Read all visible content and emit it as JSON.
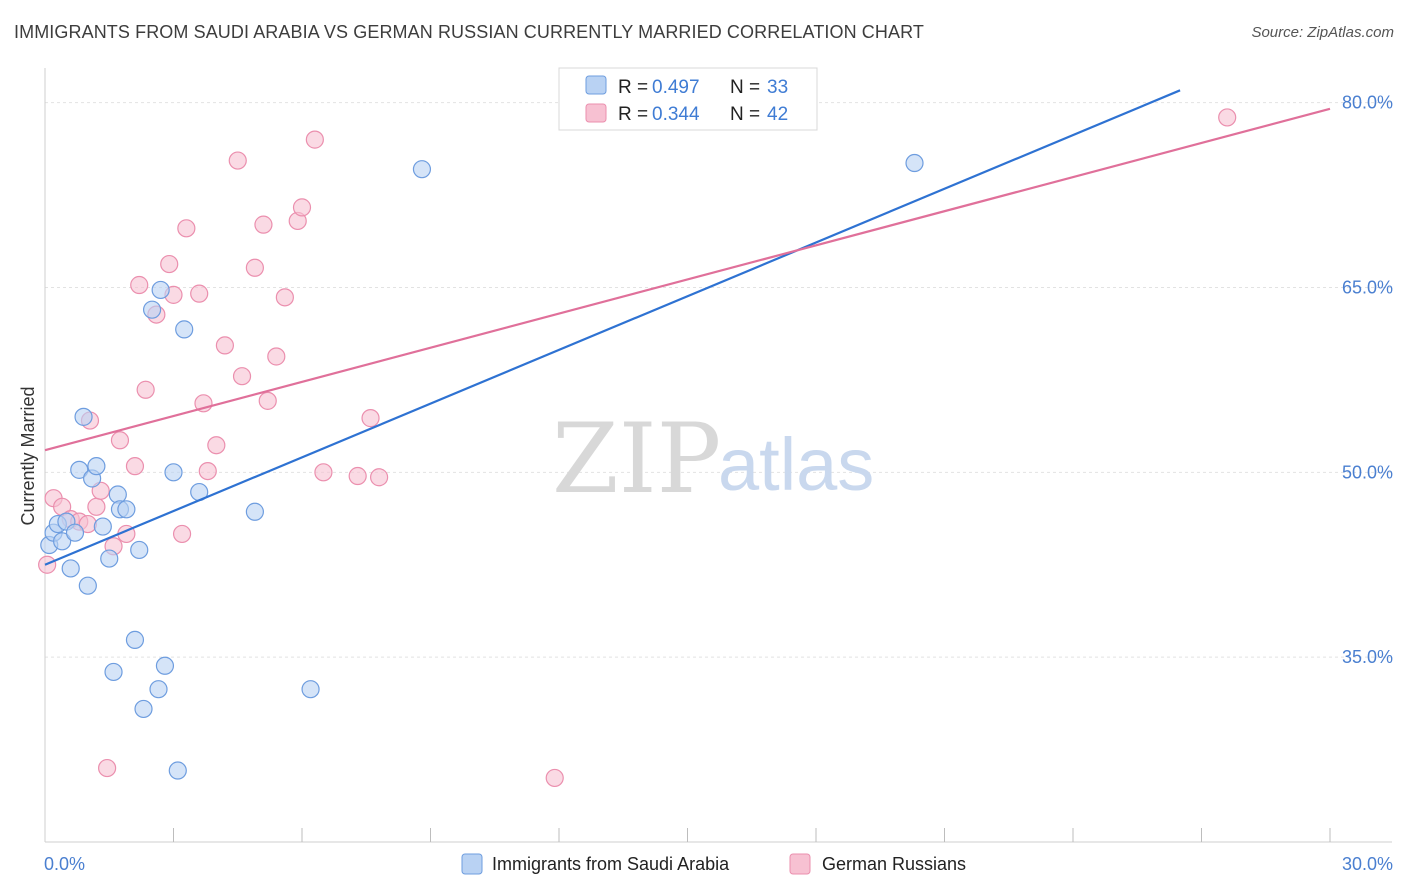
{
  "title": "IMMIGRANTS FROM SAUDI ARABIA VS GERMAN RUSSIAN CURRENTLY MARRIED CORRELATION CHART",
  "source": "Source: ZipAtlas.com",
  "watermark": {
    "zip": "ZIP",
    "atlas": "atlas"
  },
  "colors": {
    "blue_fill": "#b9d2f3",
    "blue_stroke": "#6e9ddf",
    "blue_line": "#2e72d2",
    "pink_fill": "#f7c1d2",
    "pink_stroke": "#eb8fae",
    "pink_line": "#e0709a",
    "grid": "#e2e2e2",
    "axis_text": "#4a7fd0"
  },
  "legend_stats": [
    {
      "r_label": "R =",
      "r_value": "0.497",
      "n_label": "N =",
      "n_value": "33",
      "color": "blue"
    },
    {
      "r_label": "R =",
      "r_value": "0.344",
      "n_label": "N =",
      "n_value": "42",
      "color": "pink"
    }
  ],
  "chart_data": {
    "type": "scatter",
    "title": "IMMIGRANTS FROM SAUDI ARABIA VS GERMAN RUSSIAN CURRENTLY MARRIED CORRELATION CHART",
    "xlabel": "",
    "ylabel": "Currently Married",
    "xlim": [
      0,
      30
    ],
    "ylim": [
      20,
      82
    ],
    "x_tick_labels": [
      {
        "value": 0,
        "label": "0.0%"
      },
      {
        "value": 30,
        "label": "30.0%"
      }
    ],
    "y_tick_labels": [
      {
        "value": 35,
        "label": "35.0%"
      },
      {
        "value": 50,
        "label": "50.0%"
      },
      {
        "value": 65,
        "label": "65.0%"
      },
      {
        "value": 80,
        "label": "80.0%"
      }
    ],
    "x_minor_ticks": [
      3,
      6,
      9,
      12,
      15,
      18,
      21,
      24,
      27,
      30
    ],
    "series": [
      {
        "name": "Immigrants from Saudi Arabia",
        "color": "blue",
        "trend": {
          "x": [
            0,
            26.5
          ],
          "y": [
            42.5,
            81.0
          ]
        },
        "points": [
          {
            "x": 0.1,
            "y": 44.1
          },
          {
            "x": 0.2,
            "y": 45.1
          },
          {
            "x": 0.3,
            "y": 45.8
          },
          {
            "x": 0.4,
            "y": 44.4
          },
          {
            "x": 0.5,
            "y": 46.0
          },
          {
            "x": 0.6,
            "y": 42.2
          },
          {
            "x": 0.7,
            "y": 45.1
          },
          {
            "x": 0.8,
            "y": 50.2
          },
          {
            "x": 0.9,
            "y": 54.5
          },
          {
            "x": 1.0,
            "y": 40.8
          },
          {
            "x": 1.1,
            "y": 49.5
          },
          {
            "x": 1.2,
            "y": 50.5
          },
          {
            "x": 1.35,
            "y": 45.6
          },
          {
            "x": 1.5,
            "y": 43.0
          },
          {
            "x": 1.6,
            "y": 33.8
          },
          {
            "x": 1.7,
            "y": 48.2
          },
          {
            "x": 1.75,
            "y": 47.0
          },
          {
            "x": 1.9,
            "y": 47.0
          },
          {
            "x": 2.1,
            "y": 36.4
          },
          {
            "x": 2.2,
            "y": 43.7
          },
          {
            "x": 2.3,
            "y": 30.8
          },
          {
            "x": 2.5,
            "y": 63.2
          },
          {
            "x": 2.65,
            "y": 32.4
          },
          {
            "x": 2.7,
            "y": 64.8
          },
          {
            "x": 2.8,
            "y": 34.3
          },
          {
            "x": 3.0,
            "y": 50.0
          },
          {
            "x": 3.1,
            "y": 25.8
          },
          {
            "x": 3.25,
            "y": 61.6
          },
          {
            "x": 3.6,
            "y": 48.4
          },
          {
            "x": 4.9,
            "y": 46.8
          },
          {
            "x": 6.2,
            "y": 32.4
          },
          {
            "x": 8.8,
            "y": 74.6
          },
          {
            "x": 20.3,
            "y": 75.1
          }
        ]
      },
      {
        "name": "German Russians",
        "color": "pink",
        "trend": {
          "x": [
            0,
            30
          ],
          "y": [
            51.8,
            79.5
          ]
        },
        "points": [
          {
            "x": 0.05,
            "y": 42.5
          },
          {
            "x": 0.2,
            "y": 47.9
          },
          {
            "x": 0.4,
            "y": 47.2
          },
          {
            "x": 0.6,
            "y": 46.2
          },
          {
            "x": 0.8,
            "y": 46.0
          },
          {
            "x": 1.0,
            "y": 45.8
          },
          {
            "x": 1.05,
            "y": 54.2
          },
          {
            "x": 1.2,
            "y": 47.2
          },
          {
            "x": 1.3,
            "y": 48.5
          },
          {
            "x": 1.45,
            "y": 26.0
          },
          {
            "x": 1.6,
            "y": 44.0
          },
          {
            "x": 1.75,
            "y": 52.6
          },
          {
            "x": 1.9,
            "y": 45.0
          },
          {
            "x": 2.1,
            "y": 50.5
          },
          {
            "x": 2.2,
            "y": 65.2
          },
          {
            "x": 2.35,
            "y": 56.7
          },
          {
            "x": 2.6,
            "y": 62.8
          },
          {
            "x": 2.9,
            "y": 66.9
          },
          {
            "x": 3.0,
            "y": 64.4
          },
          {
            "x": 3.2,
            "y": 45.0
          },
          {
            "x": 3.3,
            "y": 69.8
          },
          {
            "x": 3.6,
            "y": 64.5
          },
          {
            "x": 3.7,
            "y": 55.6
          },
          {
            "x": 3.8,
            "y": 50.1
          },
          {
            "x": 4.0,
            "y": 52.2
          },
          {
            "x": 4.2,
            "y": 60.3
          },
          {
            "x": 4.5,
            "y": 75.3
          },
          {
            "x": 4.6,
            "y": 57.8
          },
          {
            "x": 4.9,
            "y": 66.6
          },
          {
            "x": 5.1,
            "y": 70.1
          },
          {
            "x": 5.2,
            "y": 55.8
          },
          {
            "x": 5.4,
            "y": 59.4
          },
          {
            "x": 5.6,
            "y": 64.2
          },
          {
            "x": 5.9,
            "y": 70.4
          },
          {
            "x": 6.0,
            "y": 71.5
          },
          {
            "x": 6.3,
            "y": 77.0
          },
          {
            "x": 6.5,
            "y": 50.0
          },
          {
            "x": 7.3,
            "y": 49.7
          },
          {
            "x": 7.6,
            "y": 54.4
          },
          {
            "x": 7.8,
            "y": 49.6
          },
          {
            "x": 11.9,
            "y": 25.2
          },
          {
            "x": 27.6,
            "y": 78.8
          }
        ]
      }
    ]
  }
}
